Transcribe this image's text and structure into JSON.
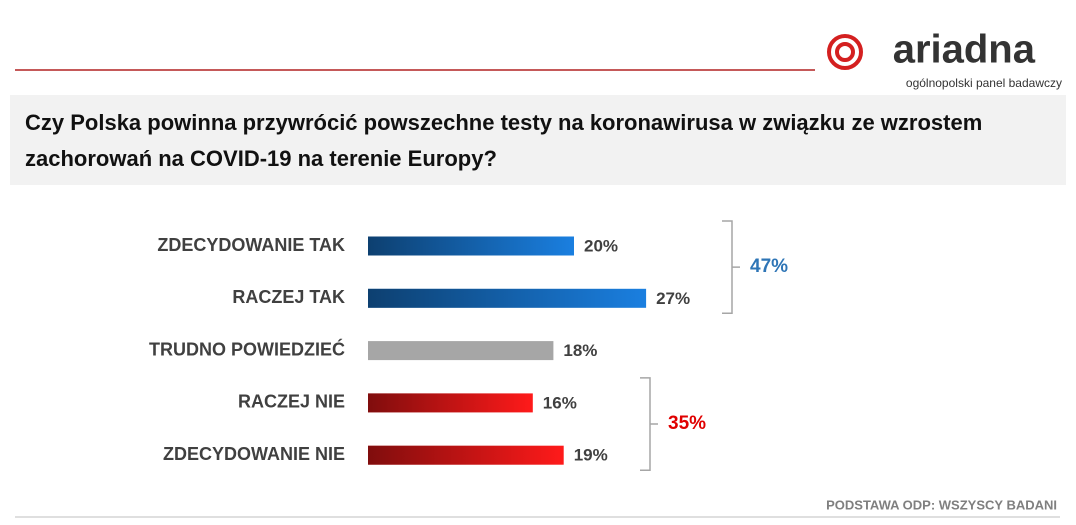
{
  "header": {
    "logo": "ariadna",
    "tagline": "ogólnopolski panel badawczy"
  },
  "chart_data": {
    "type": "bar",
    "orientation": "horizontal",
    "title": "Czy Polska powinna przywrócić powszechne testy na koronawirusa w związku ze wzrostem zachorowań na COVID-19 na terenie Europy?",
    "categories": [
      "ZDECYDOWANIE TAK",
      "RACZEJ TAK",
      "TRUDNO POWIEDZIEĆ",
      "RACZEJ NIE",
      "ZDECYDOWANIE NIE"
    ],
    "values": [
      20,
      27,
      18,
      16,
      19
    ],
    "value_labels": [
      "20%",
      "27%",
      "18%",
      "16%",
      "19%"
    ],
    "colors": [
      "#1a7fe0",
      "#1a7fe0",
      "#a6a6a6",
      "#ff1a1a",
      "#ff1a1a"
    ],
    "annotations": [
      {
        "value": 47,
        "label": "47%",
        "color": "#2e75b6"
      },
      {
        "value": 35,
        "label": "35%",
        "color": "#e00000"
      }
    ],
    "footnote": "PODSTAWA ODP: WSZYSCY BADANI"
  }
}
